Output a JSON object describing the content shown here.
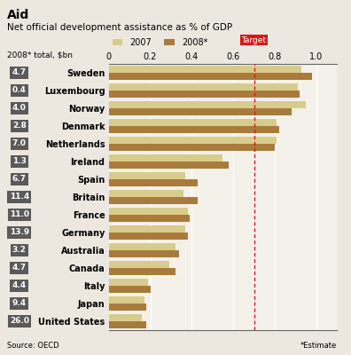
{
  "chart_data": {
    "type": "bar",
    "orientation": "horizontal",
    "title": "Aid",
    "subtitle": "Net official development assistance as % of GDP",
    "categories": [
      "Sweden",
      "Luxembourg",
      "Norway",
      "Denmark",
      "Netherlands",
      "Ireland",
      "Spain",
      "Britain",
      "France",
      "Germany",
      "Australia",
      "Canada",
      "Italy",
      "Japan",
      "United States"
    ],
    "series": [
      {
        "name": "2007",
        "color": "#d8cc8c",
        "values": [
          0.93,
          0.91,
          0.95,
          0.81,
          0.81,
          0.55,
          0.37,
          0.36,
          0.38,
          0.37,
          0.32,
          0.29,
          0.19,
          0.17,
          0.16
        ]
      },
      {
        "name": "2008*",
        "color": "#a87b3c",
        "values": [
          0.98,
          0.92,
          0.88,
          0.82,
          0.8,
          0.58,
          0.43,
          0.43,
          0.39,
          0.38,
          0.34,
          0.32,
          0.2,
          0.18,
          0.18
        ]
      }
    ],
    "totals": {
      "label": "2008* total, $bn",
      "values": [
        4.7,
        0.4,
        4.0,
        2.8,
        7.0,
        1.3,
        6.7,
        11.4,
        11.0,
        13.9,
        3.2,
        4.7,
        4.4,
        9.4,
        26.0
      ]
    },
    "annotations": [
      {
        "x": 0.7,
        "text": "Target",
        "color": "#d7191c"
      }
    ],
    "xlim": [
      0,
      1.1
    ],
    "xticks": [
      0,
      0.2,
      0.4,
      0.6,
      0.8,
      1.0
    ],
    "grid": true,
    "legend": "lower left",
    "source": "Source: OECD",
    "footnote": "*Estimate"
  }
}
